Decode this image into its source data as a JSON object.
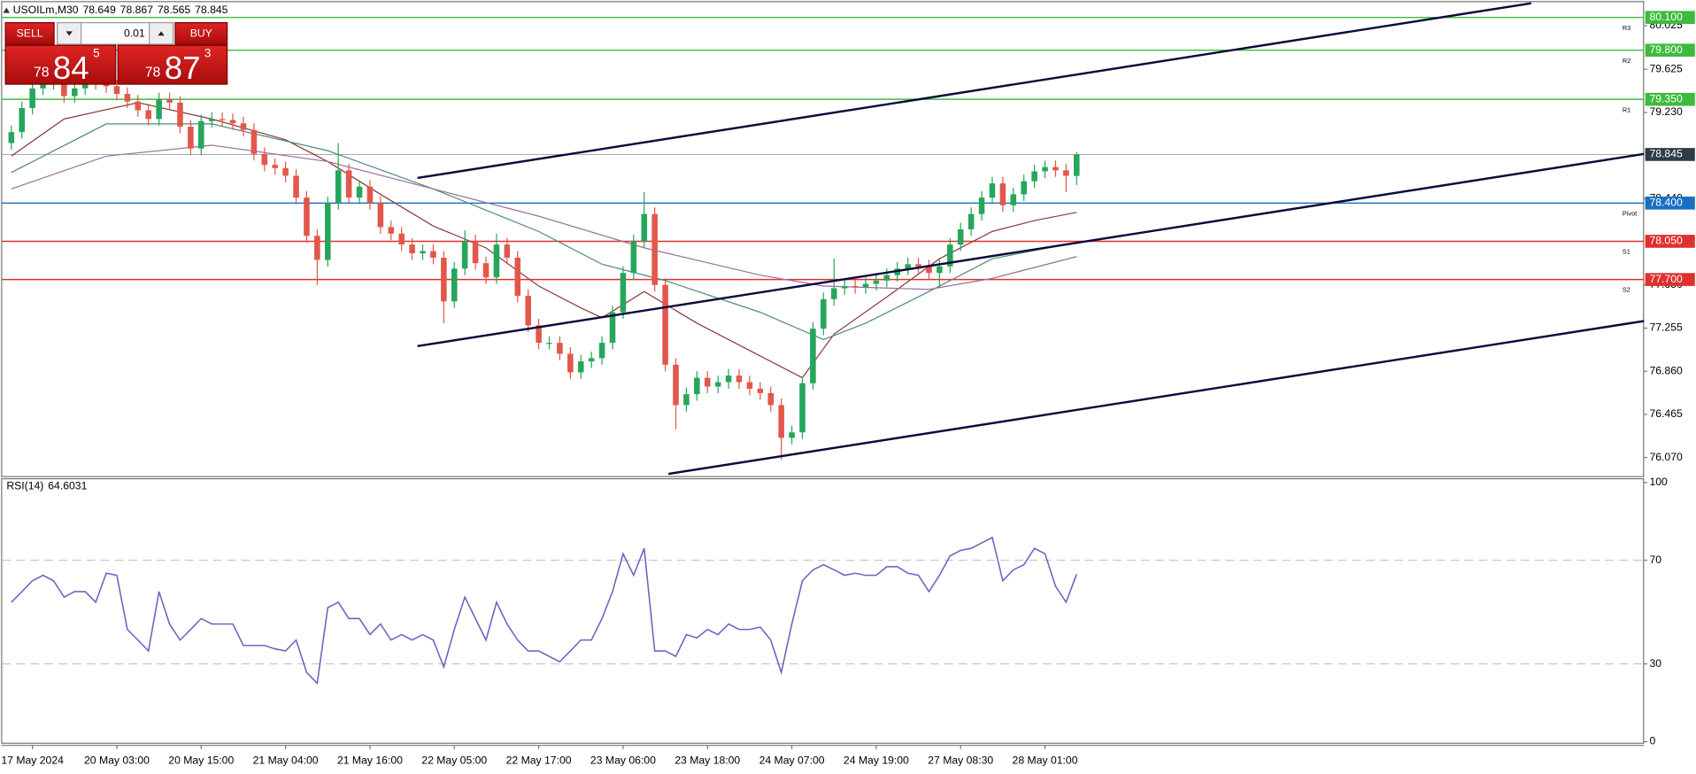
{
  "chart_data": [
    {
      "type": "candlestick",
      "title": "USOILm,M30",
      "up_color": "#26a65b",
      "down_color": "#e2574c",
      "categories": [
        null,
        null,
        "17 May 2024",
        null,
        null,
        null,
        null,
        null,
        null,
        null,
        "20 May 03:00",
        null,
        null,
        null,
        null,
        null,
        null,
        null,
        "20 May 15:00",
        null,
        null,
        null,
        null,
        null,
        null,
        null,
        "21 May 04:00",
        null,
        null,
        null,
        null,
        null,
        null,
        null,
        "21 May 16:00",
        null,
        null,
        null,
        null,
        null,
        null,
        null,
        "22 May 05:00",
        null,
        null,
        null,
        null,
        null,
        null,
        null,
        "22 May 17:00",
        null,
        null,
        null,
        null,
        null,
        null,
        null,
        "23 May 06:00",
        null,
        null,
        null,
        null,
        null,
        null,
        null,
        "23 May 18:00",
        null,
        null,
        null,
        null,
        null,
        null,
        null,
        "24 May 07:00",
        null,
        null,
        null,
        null,
        null,
        null,
        null,
        "24 May 19:00",
        null,
        null,
        null,
        null,
        null,
        null,
        null,
        "27 May 08:30",
        null,
        null,
        null,
        null,
        null,
        null,
        null,
        "28 May 01:00",
        null,
        null,
        null
      ],
      "open": [
        78.95,
        79.05,
        79.27,
        79.45,
        79.5,
        79.52,
        79.38,
        79.45,
        79.57,
        79.5,
        79.47,
        79.4,
        79.33,
        79.25,
        79.17,
        79.35,
        79.32,
        79.1,
        78.9,
        79.15,
        79.17,
        79.16,
        79.13,
        79.07,
        78.85,
        78.75,
        78.72,
        78.65,
        78.45,
        78.1,
        77.88,
        78.4,
        78.7,
        78.45,
        78.55,
        78.4,
        78.18,
        78.12,
        78.02,
        77.94,
        77.96,
        77.9,
        77.5,
        77.8,
        78.05,
        77.85,
        77.72,
        78.02,
        77.9,
        77.55,
        77.28,
        77.12,
        77.12,
        77.02,
        76.85,
        76.95,
        76.98,
        77.12,
        77.4,
        77.76,
        78.05,
        78.3,
        77.65,
        76.92,
        76.55,
        76.65,
        76.8,
        76.72,
        76.76,
        76.82,
        76.76,
        76.7,
        76.66,
        76.55,
        76.25,
        76.3,
        76.75,
        77.25,
        77.52,
        77.62,
        77.64,
        77.63,
        77.66,
        77.69,
        77.74,
        77.8,
        77.84,
        77.82,
        77.76,
        77.82,
        78.02,
        78.16,
        78.3,
        78.45,
        78.58,
        78.38,
        78.48,
        78.6,
        78.69,
        78.73,
        78.7,
        78.649
      ],
      "high": [
        79.11,
        79.33,
        79.51,
        79.56,
        79.58,
        79.58,
        79.51,
        79.63,
        79.63,
        79.56,
        79.53,
        79.46,
        79.39,
        79.31,
        79.41,
        79.41,
        79.38,
        79.16,
        79.21,
        79.23,
        79.23,
        79.22,
        79.19,
        79.13,
        78.91,
        78.81,
        78.78,
        78.71,
        78.51,
        78.16,
        78.46,
        78.95,
        78.76,
        78.61,
        78.61,
        78.46,
        78.24,
        78.18,
        78.08,
        78.02,
        78.02,
        77.96,
        77.86,
        78.15,
        78.11,
        77.91,
        78.12,
        78.08,
        77.96,
        77.61,
        77.34,
        77.18,
        77.18,
        77.08,
        77.01,
        77.04,
        77.18,
        77.46,
        77.82,
        78.11,
        78.5,
        78.36,
        77.71,
        76.98,
        76.71,
        76.86,
        76.86,
        76.82,
        76.88,
        76.88,
        76.82,
        76.76,
        76.72,
        76.61,
        76.36,
        76.81,
        77.31,
        77.58,
        77.89,
        77.7,
        77.7,
        77.72,
        77.75,
        77.8,
        77.86,
        77.9,
        77.9,
        77.88,
        77.88,
        78.08,
        78.22,
        78.36,
        78.51,
        78.64,
        78.64,
        78.54,
        78.66,
        78.75,
        78.79,
        78.79,
        78.76,
        78.867
      ],
      "low": [
        78.89,
        78.99,
        79.21,
        79.39,
        79.44,
        79.32,
        79.32,
        79.39,
        79.44,
        79.41,
        79.34,
        79.27,
        79.19,
        79.11,
        79.11,
        79.26,
        79.04,
        78.84,
        78.84,
        79.09,
        79.1,
        79.07,
        79.01,
        78.79,
        78.69,
        78.66,
        78.59,
        78.39,
        78.04,
        77.65,
        77.82,
        78.34,
        78.39,
        78.39,
        78.34,
        78.12,
        78.06,
        77.96,
        77.88,
        77.88,
        77.84,
        77.3,
        77.44,
        77.74,
        77.79,
        77.66,
        77.66,
        77.84,
        77.49,
        77.22,
        77.06,
        77.06,
        76.96,
        76.79,
        76.79,
        76.89,
        76.92,
        77.06,
        77.34,
        77.7,
        77.99,
        77.59,
        76.86,
        76.33,
        76.49,
        76.59,
        76.66,
        76.66,
        76.7,
        76.7,
        76.64,
        76.6,
        76.49,
        76.05,
        76.19,
        76.24,
        76.69,
        77.19,
        77.46,
        77.56,
        77.57,
        77.57,
        77.6,
        77.63,
        77.68,
        77.74,
        77.76,
        77.7,
        77.62,
        77.76,
        77.96,
        78.1,
        78.24,
        78.39,
        78.32,
        78.32,
        78.42,
        78.54,
        78.63,
        78.64,
        78.5,
        78.565
      ],
      "close": [
        79.05,
        79.27,
        79.45,
        79.5,
        79.52,
        79.38,
        79.45,
        79.57,
        79.5,
        79.47,
        79.4,
        79.33,
        79.25,
        79.17,
        79.35,
        79.32,
        79.1,
        78.9,
        79.15,
        79.17,
        79.16,
        79.13,
        79.07,
        78.85,
        78.75,
        78.72,
        78.65,
        78.45,
        78.1,
        77.88,
        78.4,
        78.7,
        78.45,
        78.55,
        78.4,
        78.18,
        78.12,
        78.02,
        77.94,
        77.96,
        77.9,
        77.5,
        77.8,
        78.05,
        77.85,
        77.72,
        78.02,
        77.9,
        77.55,
        77.28,
        77.12,
        77.12,
        77.02,
        76.85,
        76.95,
        76.98,
        77.12,
        77.4,
        77.76,
        78.05,
        78.3,
        77.65,
        76.92,
        76.55,
        76.65,
        76.8,
        76.72,
        76.76,
        76.82,
        76.76,
        76.7,
        76.66,
        76.55,
        76.25,
        76.3,
        76.75,
        77.25,
        77.52,
        77.62,
        77.64,
        77.63,
        77.66,
        77.69,
        77.74,
        77.8,
        77.84,
        77.82,
        77.76,
        77.82,
        78.02,
        78.16,
        78.3,
        78.45,
        78.58,
        78.38,
        78.48,
        78.6,
        78.69,
        78.73,
        78.7,
        78.65,
        78.845
      ],
      "overlays": [
        {
          "color": "#8b3a3a",
          "x": [
            0,
            5,
            12,
            19,
            26,
            30,
            35,
            40,
            45,
            50,
            54,
            56,
            60,
            65,
            71,
            75,
            78,
            83,
            88,
            93,
            97,
            101
          ],
          "values": [
            78.83,
            79.17,
            79.32,
            79.17,
            78.98,
            78.78,
            78.48,
            78.19,
            77.99,
            77.64,
            77.44,
            77.35,
            77.59,
            77.3,
            77.0,
            76.8,
            77.2,
            77.54,
            77.89,
            78.14,
            78.24,
            78.315
          ]
        },
        {
          "color": "#4f8a80",
          "x": [
            0,
            9,
            19,
            30,
            40,
            50,
            56,
            62,
            71,
            77,
            81,
            87,
            93,
            101
          ],
          "values": [
            78.68,
            79.125,
            79.125,
            78.88,
            78.53,
            78.14,
            77.84,
            77.69,
            77.4,
            77.15,
            77.3,
            77.59,
            77.89,
            78.04
          ]
        },
        {
          "color": "#9a6fa0",
          "x": [
            0,
            9,
            19,
            30,
            40,
            50,
            60,
            71,
            77,
            87,
            93,
            101
          ],
          "values": [
            78.53,
            78.83,
            78.93,
            78.78,
            78.53,
            78.28,
            77.99,
            77.74,
            77.64,
            77.61,
            77.71,
            77.91
          ]
        }
      ],
      "trendlines": [
        {
          "color": "#0a0a3c",
          "x": [
            38.5,
            144.1
          ],
          "y": [
            78.63,
            80.23
          ]
        },
        {
          "color": "#0a0a3c",
          "x": [
            38.5,
            154.8
          ],
          "y": [
            77.09,
            78.85
          ]
        },
        {
          "color": "#0a0a3c",
          "x": [
            62.3,
            154.8
          ],
          "y": [
            75.92,
            77.32
          ]
        }
      ],
      "levels": [
        {
          "name": "R3",
          "value": 80.1,
          "label": "80.100",
          "color": "#3dbb3d"
        },
        {
          "name": "R2",
          "value": 79.8,
          "label": "79.800",
          "color": "#3dbb3d"
        },
        {
          "name": "R1",
          "value": 79.35,
          "label": "79.350",
          "color": "#3dbb3d"
        },
        {
          "name": "Pivot",
          "value": 78.4,
          "label": "78.400",
          "color": "#1a6fc4"
        },
        {
          "name": "S1",
          "value": 78.05,
          "label": "78.050",
          "color": "#e03030"
        },
        {
          "name": "S2",
          "value": 77.7,
          "label": "77.700",
          "color": "#e03030"
        }
      ],
      "xlim": [
        -0.87,
        154.8
      ],
      "ylim": [
        75.91,
        80.23
      ],
      "yticks": [
        80.025,
        79.625,
        {
          "value": 79.23,
          "label": "79.230"
        },
        {
          "value": 78.44,
          "label": "78.440"
        },
        {
          "value": 77.65,
          "label": "77.650"
        },
        77.255,
        {
          "value": 76.86,
          "label": "76.860"
        },
        76.465,
        {
          "value": 76.07,
          "label": "76.070"
        }
      ]
    },
    {
      "type": "line",
      "series": [
        {
          "name": "RSI(14)",
          "color": "#7064c0",
          "values": [
            53.8,
            57.9,
            62.1,
            64.2,
            62.1,
            55.8,
            57.9,
            57.9,
            53.8,
            65.0,
            64.2,
            43.3,
            39.2,
            35.0,
            57.9,
            45.4,
            39.2,
            43.3,
            47.5,
            45.4,
            45.4,
            45.4,
            37.1,
            37.1,
            37.1,
            35.8,
            35.0,
            39.2,
            26.7,
            22.5,
            51.7,
            53.8,
            47.5,
            47.5,
            41.3,
            45.4,
            39.2,
            41.3,
            39.2,
            41.3,
            39.2,
            28.8,
            43.3,
            55.8,
            47.5,
            39.2,
            53.8,
            45.4,
            39.2,
            35.0,
            35.0,
            32.9,
            30.8,
            35.0,
            39.2,
            39.2,
            47.5,
            57.9,
            72.5,
            64.2,
            74.6,
            35.0,
            35.0,
            32.9,
            41.3,
            40.0,
            43.3,
            41.3,
            45.4,
            43.3,
            43.3,
            44.2,
            39.2,
            26.7,
            45.4,
            62.1,
            66.3,
            68.3,
            66.3,
            64.2,
            65.0,
            64.2,
            64.2,
            67.5,
            67.5,
            65.0,
            64.2,
            57.9,
            64.2,
            71.7,
            73.8,
            74.6,
            76.7,
            78.8,
            62.1,
            66.3,
            68.3,
            74.6,
            72.5,
            60.0,
            53.8,
            64.6031
          ]
        }
      ],
      "ylim": [
        0,
        100
      ],
      "yticks": [
        100,
        70,
        30,
        0
      ],
      "grid": "dashed"
    }
  ],
  "trade_panel": {
    "sell_label": "SELL",
    "lot": 0.01,
    "buy_label": "BUY",
    "bid": [
      "78",
      "84",
      "5"
    ],
    "ask": [
      "78",
      "87",
      "3"
    ]
  }
}
